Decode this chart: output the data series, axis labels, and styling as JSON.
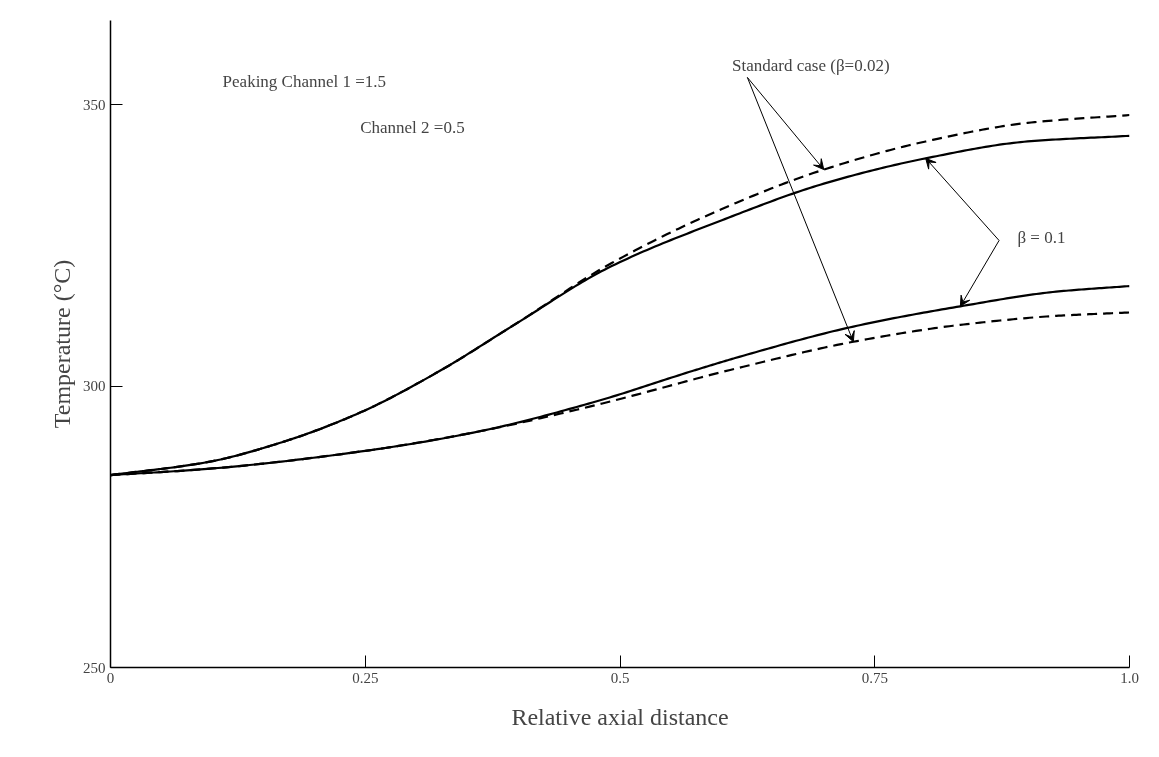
{
  "chart_data": {
    "type": "line",
    "xlabel": "Relative axial distance",
    "ylabel": "Temperature (°C)",
    "xlim": [
      0,
      1.0
    ],
    "ylim": [
      250,
      365
    ],
    "xticks": [
      0,
      0.25,
      0.5,
      0.75,
      {
        "value": 1.0,
        "label": "1.0"
      }
    ],
    "yticks": [
      250,
      300,
      350
    ],
    "grid": false,
    "marker": "none",
    "series": [
      {
        "color": "#000000",
        "line_style": "solid",
        "x": [
          0,
          0.095,
          0.171,
          0.246,
          0.322,
          0.397,
          0.488,
          0.6,
          0.7,
          0.8,
          0.9,
          1.0
        ],
        "values": [
          284.2,
          286.5,
          290.2,
          295.4,
          302.6,
          311.0,
          321.0,
          329.5,
          336.0,
          340.5,
          343.5,
          344.5
        ]
      },
      {
        "color": "#000000",
        "line_style": "dashed",
        "x": [
          0,
          0.095,
          0.171,
          0.246,
          0.322,
          0.397,
          0.488,
          0.6,
          0.7,
          0.8,
          0.9,
          1.0
        ],
        "values": [
          284.2,
          286.5,
          290.2,
          295.4,
          302.6,
          311.0,
          321.5,
          331.5,
          338.5,
          343.5,
          346.8,
          348.2
        ]
      },
      {
        "color": "#000000",
        "line_style": "solid",
        "x": [
          0,
          0.095,
          0.246,
          0.36,
          0.473,
          0.571,
          0.613,
          0.729,
          0.834,
          0.928,
          1.0
        ],
        "values": [
          284.2,
          285.3,
          288.4,
          291.9,
          297.1,
          302.7,
          305.0,
          310.6,
          314.2,
          316.8,
          317.8
        ]
      },
      {
        "color": "#000000",
        "line_style": "dashed",
        "x": [
          0,
          0.095,
          0.246,
          0.36,
          0.473,
          0.613,
          0.729,
          0.834,
          0.928,
          1.0
        ],
        "values": [
          284.2,
          285.3,
          288.4,
          291.9,
          296.5,
          303.1,
          307.9,
          310.9,
          312.5,
          313.1
        ]
      }
    ],
    "annotations": [
      "Peaking  Channel 1 =1.5",
      "Channel 2 =0.5",
      {
        "text": "Standard case (β=0.02)",
        "x": 0.7,
        "y": 338.5
      },
      {
        "text": "β = 0.1",
        "x": 0.8,
        "y": 340.5
      }
    ]
  }
}
